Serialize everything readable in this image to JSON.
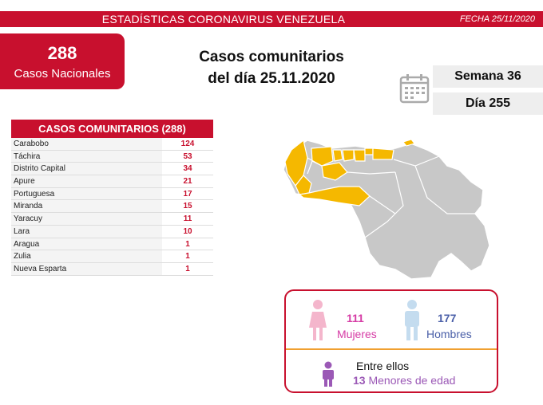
{
  "banner": {
    "title": "ESTADÍSTICAS CORONAVIRUS VENEZUELA",
    "date": "FECHA 25/11/2020"
  },
  "national": {
    "count": "288",
    "label": "Casos Nacionales"
  },
  "headline": {
    "line1": "Casos comunitarios",
    "line2": "del día 25.11.2020"
  },
  "week": "Semana 36",
  "day": "Día 255",
  "table": {
    "header": "CASOS COMUNITARIOS (288)",
    "rows": [
      {
        "state": "Carabobo",
        "cases": "124"
      },
      {
        "state": "Táchira",
        "cases": "53"
      },
      {
        "state": "Distrito Capital",
        "cases": "34"
      },
      {
        "state": "Apure",
        "cases": "21"
      },
      {
        "state": "Portuguesa",
        "cases": "17"
      },
      {
        "state": "Miranda",
        "cases": "15"
      },
      {
        "state": "Yaracuy",
        "cases": "11"
      },
      {
        "state": "Lara",
        "cases": "10"
      },
      {
        "state": "Aragua",
        "cases": "1"
      },
      {
        "state": "Zulia",
        "cases": "1"
      },
      {
        "state": "Nueva Esparta",
        "cases": "1"
      }
    ]
  },
  "gender": {
    "women_count": "111",
    "women_label": "Mujeres",
    "men_count": "177",
    "men_label": "Hombres",
    "among_them": "Entre ellos",
    "minors_count": "13",
    "minors_label": "Menores de edad"
  },
  "colors": {
    "brand_red": "#c8102e",
    "highlight_state": "#f5b800",
    "other_state": "#c8c8c8",
    "women": "#d63ba5",
    "men": "#4a5fa8",
    "minors": "#9b59b6"
  }
}
